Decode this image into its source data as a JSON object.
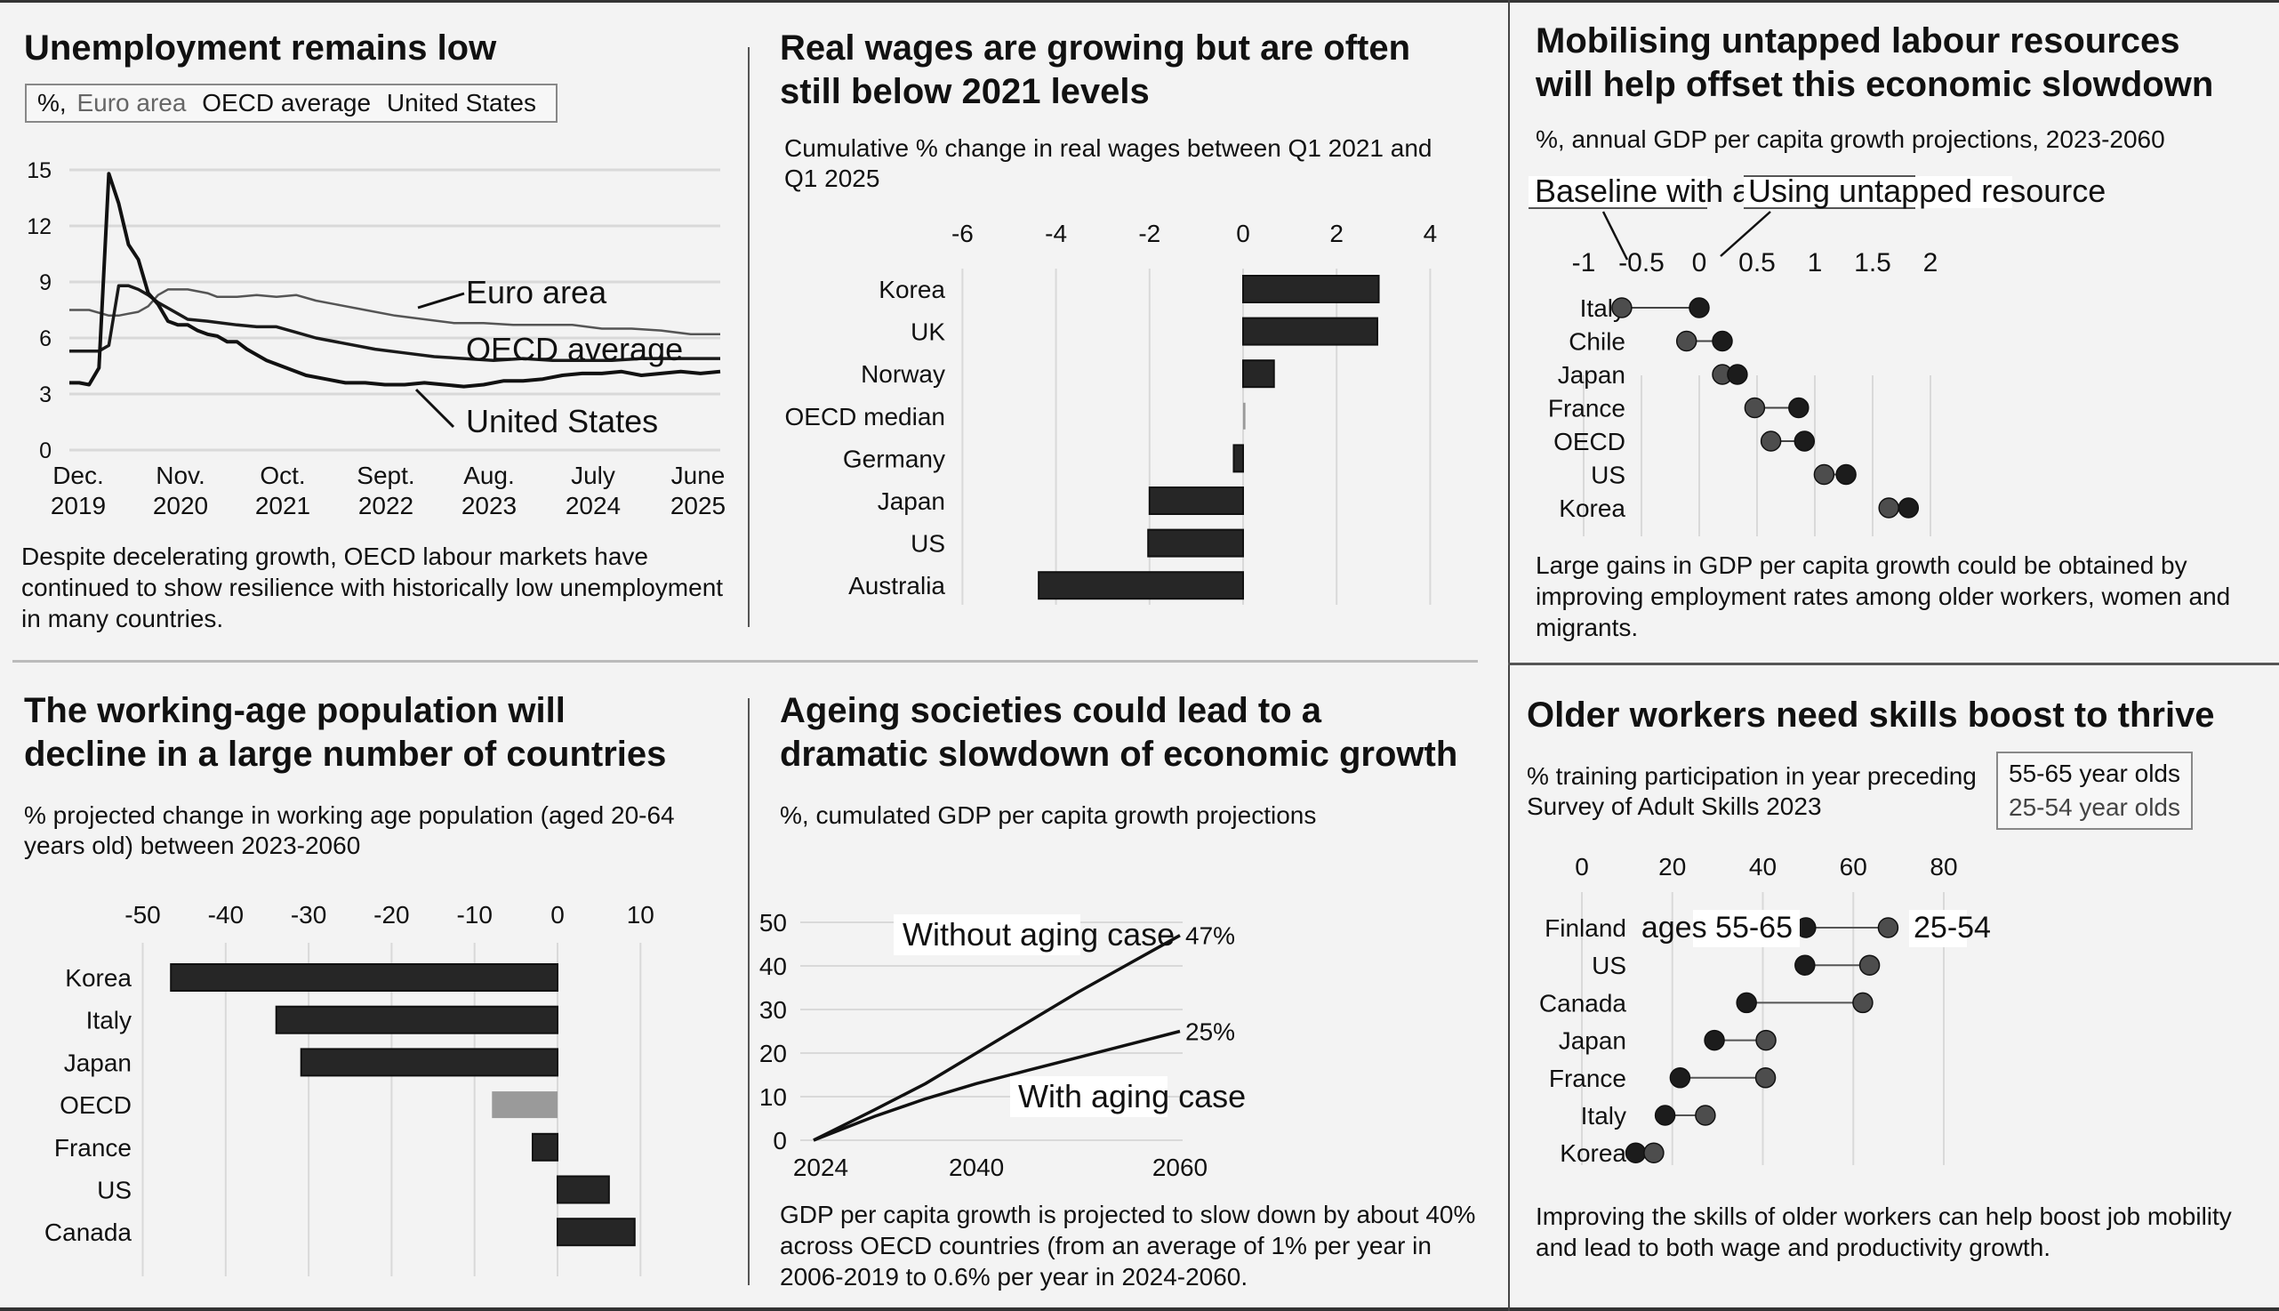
{
  "colors": {
    "background": "#f3f3f3",
    "bar": "#262626",
    "bar_highlight": "#9a9a9a",
    "dot_dark": "#1c1c1c",
    "dot_light": "#4d4d4d",
    "grid": "#d9d9d9"
  },
  "panels": {
    "unemployment": {
      "title": "Unemployment remains low",
      "legend_prefix": "%,",
      "legend": [
        "Euro area",
        "OECD average",
        "United States"
      ],
      "caption": "Despite decelerating growth, OECD labour markets have continued to show resilience with historically low unemployment in many countries."
    },
    "wages": {
      "title_line1": "Real wages are growing but are often",
      "title_line2": "still below 2021 levels",
      "subtitle": "Cumulative % change in real wages between Q1 2021 and Q1 2025"
    },
    "untapped": {
      "title_line1": "Mobilising untapped labour resources",
      "title_line2": "will help offset this economic slowdown",
      "subtitle": "%, annual GDP per capita growth projections, 2023-2060",
      "caption": "Large gains in GDP per capita growth could be obtained by improving employment rates among older workers, women and migrants."
    },
    "population": {
      "title_line1": "The working-age population will",
      "title_line2": "decline in a large number of countries",
      "subtitle": "% projected change in working age population (aged 20-64 years old) between 2023-2060"
    },
    "ageing": {
      "title_line1": "Ageing societies could lead to a",
      "title_line2": "dramatic slowdown of economic growth",
      "subtitle": "%, cumulated GDP per capita growth projections",
      "caption": "GDP per capita growth is projected to slow down by about 40% across OECD countries (from an average of 1% per year in 2006-2019 to 0.6% per year in 2024-2060."
    },
    "skills": {
      "title": "Older workers need skills boost to thrive",
      "subtitle": "% training participation in year preceding Survey of Adult Skills 2023",
      "legend": [
        "55-65 year olds",
        "25-54 year olds"
      ],
      "caption": "Improving the skills of older workers can help boost job mobility and lead to both wage and productivity growth."
    }
  },
  "chart_data": [
    {
      "id": "unemployment",
      "type": "line",
      "title": "Unemployment remains low",
      "ylabel": "%",
      "ylim": [
        0,
        15
      ],
      "yticks": [
        0,
        3,
        6,
        9,
        12,
        15
      ],
      "xticks": [
        "Dec. 2019",
        "Nov. 2020",
        "Oct. 2021",
        "Sept. 2022",
        "Aug. 2023",
        "July 2024",
        "June 2025"
      ],
      "xtick_lines": [
        [
          "Dec.",
          "2019"
        ],
        [
          "Nov.",
          "2020"
        ],
        [
          "Oct.",
          "2021"
        ],
        [
          "Sept.",
          "2022"
        ],
        [
          "Aug.",
          "2023"
        ],
        [
          "July",
          "2024"
        ],
        [
          "June",
          "2025"
        ]
      ],
      "x_range_months": [
        0,
        66
      ],
      "grid": true,
      "series": [
        {
          "name": "Euro area",
          "label": "Euro area",
          "color": "#555555",
          "points": [
            [
              0,
              7.5
            ],
            [
              2,
              7.5
            ],
            [
              4,
              7.2
            ],
            [
              5,
              7.2
            ],
            [
              6,
              7.3
            ],
            [
              7,
              7.4
            ],
            [
              8,
              7.7
            ],
            [
              9,
              8.3
            ],
            [
              10,
              8.6
            ],
            [
              11,
              8.6
            ],
            [
              12,
              8.6
            ],
            [
              14,
              8.4
            ],
            [
              15,
              8.2
            ],
            [
              17,
              8.2
            ],
            [
              19,
              8.3
            ],
            [
              21,
              8.2
            ],
            [
              23,
              8.3
            ],
            [
              25,
              8.0
            ],
            [
              27,
              7.8
            ],
            [
              30,
              7.5
            ],
            [
              33,
              7.2
            ],
            [
              36,
              7.0
            ],
            [
              39,
              6.8
            ],
            [
              42,
              6.8
            ],
            [
              45,
              6.7
            ],
            [
              48,
              6.7
            ],
            [
              51,
              6.7
            ],
            [
              54,
              6.5
            ],
            [
              57,
              6.5
            ],
            [
              60,
              6.4
            ],
            [
              63,
              6.2
            ],
            [
              66,
              6.2
            ]
          ]
        },
        {
          "name": "OECD average",
          "label": "OECD average",
          "color": "#1a1a1a",
          "points": [
            [
              0,
              5.3
            ],
            [
              2,
              5.3
            ],
            [
              3,
              5.3
            ],
            [
              4,
              5.6
            ],
            [
              5,
              8.8
            ],
            [
              6,
              8.8
            ],
            [
              7,
              8.6
            ],
            [
              8,
              8.3
            ],
            [
              9,
              7.9
            ],
            [
              10,
              7.6
            ],
            [
              11,
              7.3
            ],
            [
              12,
              7.0
            ],
            [
              14,
              6.9
            ],
            [
              17,
              6.7
            ],
            [
              19,
              6.6
            ],
            [
              21,
              6.6
            ],
            [
              23,
              6.3
            ],
            [
              25,
              6.0
            ],
            [
              28,
              5.7
            ],
            [
              31,
              5.4
            ],
            [
              34,
              5.2
            ],
            [
              37,
              5.0
            ],
            [
              40,
              4.9
            ],
            [
              43,
              4.8
            ],
            [
              46,
              4.9
            ],
            [
              49,
              4.8
            ],
            [
              52,
              4.8
            ],
            [
              55,
              4.8
            ],
            [
              58,
              4.9
            ],
            [
              61,
              4.9
            ],
            [
              64,
              4.9
            ],
            [
              66,
              4.9
            ]
          ]
        },
        {
          "name": "United States",
          "label": "United States",
          "color": "#111111",
          "points": [
            [
              0,
              3.6
            ],
            [
              1,
              3.6
            ],
            [
              2,
              3.5
            ],
            [
              3,
              4.4
            ],
            [
              4,
              14.8
            ],
            [
              5,
              13.2
            ],
            [
              6,
              11.0
            ],
            [
              7,
              10.2
            ],
            [
              8,
              8.4
            ],
            [
              9,
              7.8
            ],
            [
              10,
              6.9
            ],
            [
              11,
              6.7
            ],
            [
              12,
              6.7
            ],
            [
              13,
              6.4
            ],
            [
              14,
              6.2
            ],
            [
              15,
              6.1
            ],
            [
              16,
              5.8
            ],
            [
              17,
              5.8
            ],
            [
              18,
              5.4
            ],
            [
              20,
              4.8
            ],
            [
              22,
              4.4
            ],
            [
              24,
              4.0
            ],
            [
              26,
              3.8
            ],
            [
              28,
              3.6
            ],
            [
              30,
              3.6
            ],
            [
              32,
              3.5
            ],
            [
              34,
              3.5
            ],
            [
              36,
              3.6
            ],
            [
              38,
              3.5
            ],
            [
              40,
              3.4
            ],
            [
              42,
              3.5
            ],
            [
              44,
              3.7
            ],
            [
              46,
              3.7
            ],
            [
              48,
              3.8
            ],
            [
              50,
              4.0
            ],
            [
              52,
              4.1
            ],
            [
              54,
              4.1
            ],
            [
              56,
              4.2
            ],
            [
              58,
              4.0
            ],
            [
              60,
              4.1
            ],
            [
              62,
              4.2
            ],
            [
              64,
              4.1
            ],
            [
              66,
              4.2
            ]
          ]
        }
      ]
    },
    {
      "id": "wages",
      "type": "bar",
      "orientation": "horizontal",
      "title": "Real wages are growing but are often still below 2021 levels",
      "xlabel": "Cumulative % change in real wages between Q1 2021 and Q1 2025",
      "xlim": [
        -6,
        4
      ],
      "xticks": [
        -6,
        -4,
        -2,
        0,
        2,
        4
      ],
      "grid": true,
      "categories": [
        "Korea",
        "UK",
        "Norway",
        "OECD median",
        "Germany",
        "Japan",
        "US",
        "Australia"
      ],
      "values": [
        2.9,
        2.87,
        0.66,
        0.05,
        -0.2,
        -2.0,
        -2.03,
        -4.37
      ],
      "highlight": [
        "OECD median"
      ]
    },
    {
      "id": "untapped",
      "type": "scatter",
      "subtype": "dumbbell",
      "title": "Mobilising untapped labour resources will help offset this economic slowdown",
      "xlabel": "%, annual GDP per capita growth projections, 2023-2060",
      "xlim": [
        -1,
        2
      ],
      "xticks": [
        -1,
        -0.5,
        0,
        0.5,
        1,
        1.5,
        2
      ],
      "grid": true,
      "categories": [
        "Italy",
        "Chile",
        "Japan",
        "France",
        "OECD",
        "US",
        "Korea"
      ],
      "series": [
        {
          "name": "Baseline with aging",
          "values": [
            -0.67,
            -0.11,
            0.2,
            0.48,
            0.62,
            1.08,
            1.64
          ]
        },
        {
          "name": "Using untapped resource",
          "values": [
            0.0,
            0.2,
            0.33,
            0.86,
            0.91,
            1.27,
            1.81
          ]
        }
      ],
      "annotations": [
        "Baseline with aging",
        "Using untapped resource"
      ]
    },
    {
      "id": "population",
      "type": "bar",
      "orientation": "horizontal",
      "title": "The working-age population will decline in a large number of countries",
      "xlabel": "% projected change in working age population (aged 20-64 years old) between 2023-2060",
      "xlim": [
        -50,
        10
      ],
      "xticks": [
        -50,
        -40,
        -30,
        -20,
        -10,
        0,
        10
      ],
      "grid": true,
      "categories": [
        "Korea",
        "Italy",
        "Japan",
        "OECD",
        "France",
        "US",
        "Canada"
      ],
      "values": [
        -46.6,
        -33.9,
        -30.9,
        -7.9,
        -3.0,
        6.2,
        9.3
      ],
      "highlight": [
        "OECD"
      ]
    },
    {
      "id": "ageing",
      "type": "line",
      "title": "Ageing societies could lead to a dramatic slowdown of economic growth",
      "ylabel": "%, cumulated GDP per capita growth projections",
      "ylim": [
        0,
        50
      ],
      "yticks": [
        0,
        10,
        20,
        30,
        40,
        50
      ],
      "xlim": [
        2024,
        2060
      ],
      "xticks": [
        2024,
        2040,
        2060
      ],
      "grid": true,
      "series": [
        {
          "name": "Without aging case",
          "end_label": "47%",
          "x": [
            2024,
            2030,
            2035,
            2040,
            2045,
            2050,
            2055,
            2060
          ],
          "y": [
            0,
            7,
            13,
            20,
            27,
            34,
            40.5,
            47
          ]
        },
        {
          "name": "With aging case",
          "end_label": "25%",
          "x": [
            2024,
            2030,
            2035,
            2040,
            2045,
            2050,
            2055,
            2060
          ],
          "y": [
            0,
            5.5,
            9.5,
            13,
            16,
            19,
            22,
            25
          ]
        }
      ]
    },
    {
      "id": "skills",
      "type": "scatter",
      "subtype": "dumbbell",
      "title": "Older workers need skills boost to thrive",
      "xlabel": "% training participation in year preceding Survey of Adult Skills 2023",
      "xlim": [
        0,
        80
      ],
      "xticks": [
        0,
        20,
        40,
        60,
        80
      ],
      "grid": true,
      "categories": [
        "Finland",
        "US",
        "Canada",
        "Japan",
        "France",
        "Italy",
        "Korea"
      ],
      "series": [
        {
          "name": "55-65 year olds",
          "label": "ages 55-65",
          "values": [
            49.5,
            49.3,
            36.4,
            29.3,
            21.7,
            18.4,
            11.9
          ]
        },
        {
          "name": "25-54 year olds",
          "label": "25-54",
          "values": [
            67.7,
            63.6,
            62.1,
            40.7,
            40.6,
            27.3,
            15.9
          ]
        }
      ],
      "legend": "top-right"
    }
  ]
}
